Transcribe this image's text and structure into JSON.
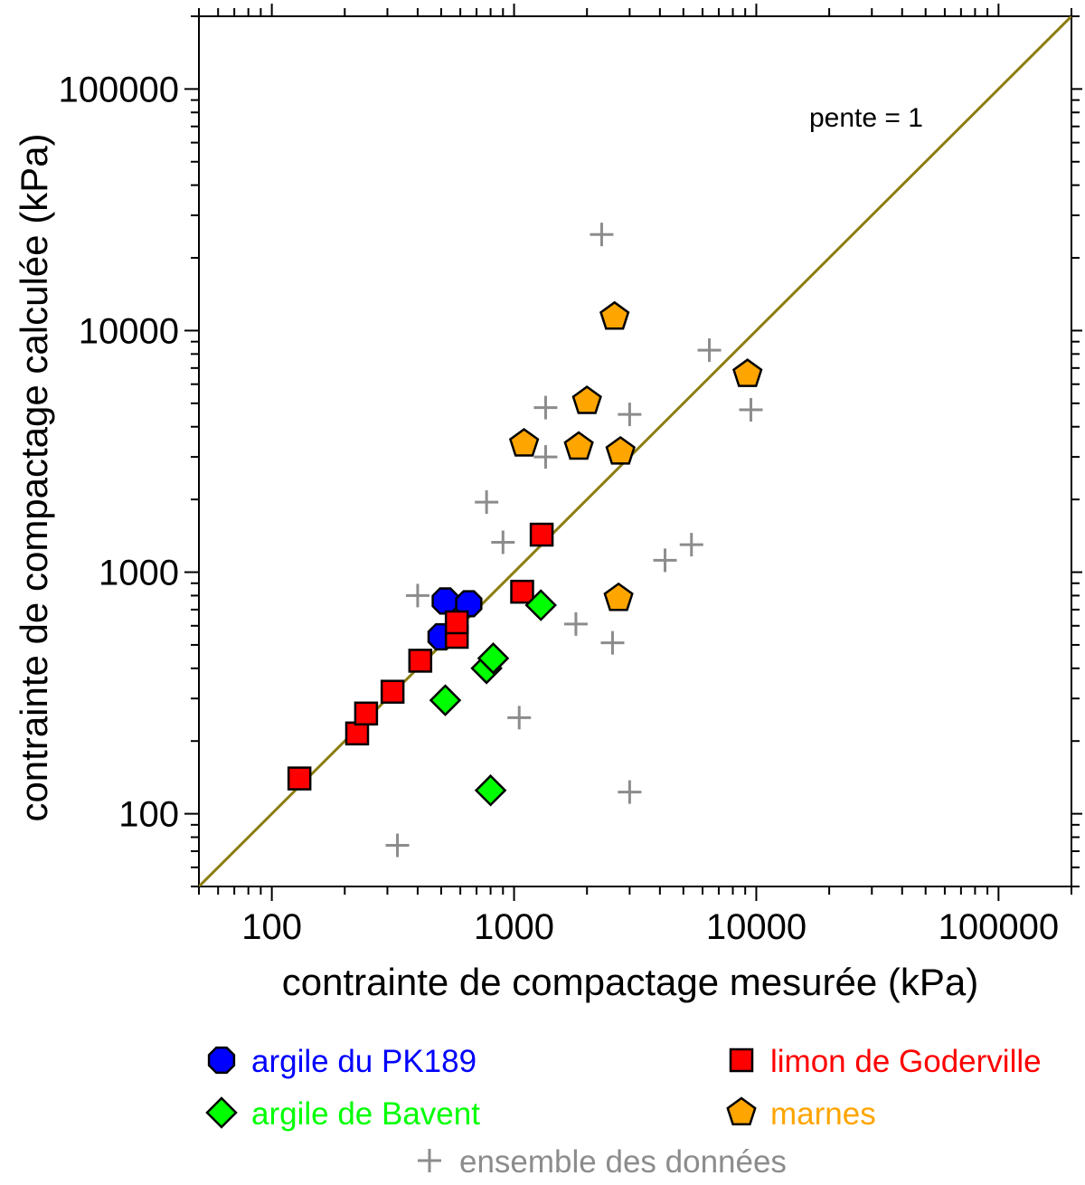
{
  "chart_data": {
    "type": "scatter",
    "xlabel": "contrainte de compactage mesurée (kPa)",
    "ylabel": "contrainte de compactage calculée (kPa)",
    "xscale": "log",
    "yscale": "log",
    "xlim": [
      50,
      200000
    ],
    "ylim": [
      50,
      200000
    ],
    "xticks": [
      {
        "value": 100,
        "label": "100"
      },
      {
        "value": 1000,
        "label": "1000"
      },
      {
        "value": 10000,
        "label": "10000"
      },
      {
        "value": 100000,
        "label": "100000"
      }
    ],
    "yticks": [
      {
        "value": 100,
        "label": "100"
      },
      {
        "value": 1000,
        "label": "1000"
      },
      {
        "value": 10000,
        "label": "10000"
      },
      {
        "value": 100000,
        "label": "100000"
      }
    ],
    "grid": false,
    "reference_line": {
      "label": "pente = 1",
      "slope": 1,
      "color": "#8c7d10"
    },
    "legend_position": "bottom",
    "series": [
      {
        "name": "argile du PK189",
        "marker": "octagon",
        "color": "#0000ff",
        "points": [
          {
            "x": 500,
            "y": 540
          },
          {
            "x": 520,
            "y": 760
          },
          {
            "x": 650,
            "y": 740
          }
        ]
      },
      {
        "name": "limon de Goderville",
        "marker": "square",
        "color": "#ff0000",
        "points": [
          {
            "x": 130,
            "y": 140
          },
          {
            "x": 225,
            "y": 215
          },
          {
            "x": 245,
            "y": 260
          },
          {
            "x": 315,
            "y": 320
          },
          {
            "x": 410,
            "y": 430
          },
          {
            "x": 580,
            "y": 540
          },
          {
            "x": 580,
            "y": 620
          },
          {
            "x": 1080,
            "y": 830
          },
          {
            "x": 1300,
            "y": 1430
          }
        ]
      },
      {
        "name": "argile de Bavent",
        "marker": "diamond",
        "color": "#00ff00",
        "points": [
          {
            "x": 520,
            "y": 295
          },
          {
            "x": 770,
            "y": 400
          },
          {
            "x": 820,
            "y": 440
          },
          {
            "x": 1290,
            "y": 730
          },
          {
            "x": 800,
            "y": 125
          }
        ]
      },
      {
        "name": "marnes",
        "marker": "pentagon",
        "color": "#ffa500",
        "points": [
          {
            "x": 2600,
            "y": 11400
          },
          {
            "x": 2000,
            "y": 5100
          },
          {
            "x": 1100,
            "y": 3400
          },
          {
            "x": 1850,
            "y": 3300
          },
          {
            "x": 2750,
            "y": 3150
          },
          {
            "x": 2700,
            "y": 780
          },
          {
            "x": 9200,
            "y": 6600
          }
        ]
      },
      {
        "name": "ensemble des données",
        "marker": "plus",
        "color": "#8c8c8c",
        "points": [
          {
            "x": 2300,
            "y": 25000
          },
          {
            "x": 6400,
            "y": 8300
          },
          {
            "x": 1350,
            "y": 4800
          },
          {
            "x": 3000,
            "y": 4500
          },
          {
            "x": 9500,
            "y": 4700
          },
          {
            "x": 1350,
            "y": 3000
          },
          {
            "x": 770,
            "y": 1950
          },
          {
            "x": 900,
            "y": 1330
          },
          {
            "x": 5400,
            "y": 1300
          },
          {
            "x": 4200,
            "y": 1120
          },
          {
            "x": 400,
            "y": 800
          },
          {
            "x": 1800,
            "y": 610
          },
          {
            "x": 2550,
            "y": 510
          },
          {
            "x": 1050,
            "y": 250
          },
          {
            "x": 3000,
            "y": 123
          },
          {
            "x": 330,
            "y": 74
          },
          {
            "x": 130,
            "y": 140
          },
          {
            "x": 225,
            "y": 215
          },
          {
            "x": 245,
            "y": 260
          },
          {
            "x": 315,
            "y": 320
          },
          {
            "x": 410,
            "y": 430
          },
          {
            "x": 500,
            "y": 540
          },
          {
            "x": 580,
            "y": 620
          },
          {
            "x": 1080,
            "y": 830
          }
        ]
      }
    ]
  }
}
